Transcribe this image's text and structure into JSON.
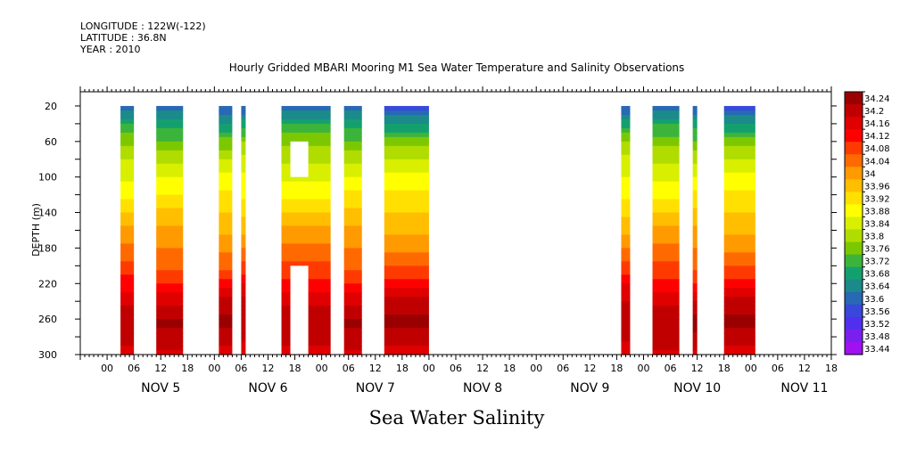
{
  "header": {
    "longitude": "LONGITUDE : 122W(-122)",
    "latitude": "LATITUDE : 36.8N",
    "year": "YEAR : 2010"
  },
  "chart_data": {
    "type": "heatmap",
    "title": "Hourly Gridded MBARI Mooring M1 Sea Water Temperature and Salinity Observations",
    "bottom_title": "Sea Water Salinity",
    "ylabel": "DEPTH (m)",
    "xlim_hours": [
      -6,
      162
    ],
    "ylim": [
      300,
      0
    ],
    "y_ticks": [
      20,
      60,
      100,
      140,
      180,
      220,
      260,
      300
    ],
    "x_hour_ticks": [
      "00",
      "06",
      "12",
      "18",
      "00",
      "06",
      "12",
      "18",
      "00",
      "06",
      "12",
      "18",
      "00",
      "06",
      "12",
      "18",
      "00",
      "06",
      "12",
      "18",
      "00",
      "06",
      "12",
      "18",
      "00",
      "06",
      "12",
      "18"
    ],
    "days": [
      "NOV  5",
      "NOV  6",
      "NOV  7",
      "NOV  8",
      "NOV  9",
      "NOV 10",
      "NOV 11"
    ],
    "data_columns": [
      {
        "start_hour": 3,
        "end_hour": 6
      },
      {
        "start_hour": 11,
        "end_hour": 17
      },
      {
        "start_hour": 25,
        "end_hour": 28
      },
      {
        "start_hour": 30,
        "end_hour": 31
      },
      {
        "start_hour": 39,
        "end_hour": 50
      },
      {
        "start_hour": 53,
        "end_hour": 57
      },
      {
        "start_hour": 62,
        "end_hour": 72
      },
      {
        "start_hour": 115,
        "end_hour": 117
      },
      {
        "start_hour": 122,
        "end_hour": 128
      },
      {
        "start_hour": 131,
        "end_hour": 132
      },
      {
        "start_hour": 138,
        "end_hour": 145
      }
    ],
    "missing_gaps": [
      {
        "start_hour": 41,
        "end_hour": 45,
        "depth_top": 60,
        "depth_bottom": 100
      },
      {
        "start_hour": 41,
        "end_hour": 45,
        "depth_top": 200,
        "depth_bottom": 300
      }
    ],
    "depth_profile": [
      {
        "depth": 20,
        "salinity": 33.58
      },
      {
        "depth": 40,
        "salinity": 33.68
      },
      {
        "depth": 60,
        "salinity": 33.76
      },
      {
        "depth": 80,
        "salinity": 33.82
      },
      {
        "depth": 100,
        "salinity": 33.86
      },
      {
        "depth": 120,
        "salinity": 33.9
      },
      {
        "depth": 140,
        "salinity": 33.94
      },
      {
        "depth": 160,
        "salinity": 33.98
      },
      {
        "depth": 180,
        "salinity": 34.02
      },
      {
        "depth": 200,
        "salinity": 34.06
      },
      {
        "depth": 220,
        "salinity": 34.12
      },
      {
        "depth": 240,
        "salinity": 34.18
      },
      {
        "depth": 260,
        "salinity": 34.22
      },
      {
        "depth": 280,
        "salinity": 34.2
      },
      {
        "depth": 300,
        "salinity": 34.16
      }
    ],
    "colorbar": {
      "labels": [
        "34.24",
        "34.2",
        "34.16",
        "34.12",
        "34.08",
        "34.04",
        "34",
        "33.96",
        "33.92",
        "33.88",
        "33.84",
        "33.8",
        "33.76",
        "33.72",
        "33.68",
        "33.64",
        "33.6",
        "33.56",
        "33.52",
        "33.48",
        "33.44"
      ],
      "colors": [
        "#9a0000",
        "#c00000",
        "#e00000",
        "#ff0000",
        "#ff3a00",
        "#ff6a00",
        "#ff9a00",
        "#ffbe00",
        "#ffe000",
        "#ffff00",
        "#d8ef00",
        "#b0dc00",
        "#7cc800",
        "#3cb43c",
        "#14a06e",
        "#1a8a8a",
        "#2868b4",
        "#3848dc",
        "#5030ee",
        "#7a20ee",
        "#a010f0"
      ]
    }
  }
}
